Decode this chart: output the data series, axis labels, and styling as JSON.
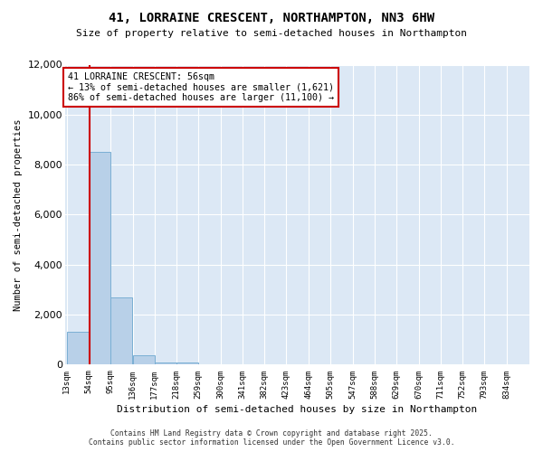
{
  "title1": "41, LORRAINE CRESCENT, NORTHAMPTON, NN3 6HW",
  "title2": "Size of property relative to semi-detached houses in Northampton",
  "xlabel": "Distribution of semi-detached houses by size in Northampton",
  "ylabel": "Number of semi-detached properties",
  "bins": [
    13,
    54,
    95,
    136,
    177,
    218,
    259,
    300,
    341,
    382,
    423,
    464,
    505,
    547,
    588,
    629,
    670,
    711,
    752,
    793,
    834
  ],
  "bar_heights": [
    1300,
    8500,
    2700,
    380,
    100,
    100,
    0,
    0,
    0,
    0,
    0,
    0,
    0,
    0,
    0,
    0,
    0,
    0,
    0,
    0
  ],
  "bar_color": "#b8d0e8",
  "bar_edge_color": "#7aafd4",
  "plot_bg_color": "#dce8f5",
  "figure_bg_color": "#ffffff",
  "grid_color": "#ffffff",
  "property_line_x": 56,
  "annotation_title": "41 LORRAINE CRESCENT: 56sqm",
  "annotation_line1": "← 13% of semi-detached houses are smaller (1,621)",
  "annotation_line2": "86% of semi-detached houses are larger (11,100) →",
  "annotation_box_color": "#cc0000",
  "annotation_bg_color": "#ffffff",
  "ylim": [
    0,
    12000
  ],
  "yticks": [
    0,
    2000,
    4000,
    6000,
    8000,
    10000,
    12000
  ],
  "footer_line1": "Contains HM Land Registry data © Crown copyright and database right 2025.",
  "footer_line2": "Contains public sector information licensed under the Open Government Licence v3.0.",
  "bin_labels": [
    "13sqm",
    "54sqm",
    "95sqm",
    "136sqm",
    "177sqm",
    "218sqm",
    "259sqm",
    "300sqm",
    "341sqm",
    "382sqm",
    "423sqm",
    "464sqm",
    "505sqm",
    "547sqm",
    "588sqm",
    "629sqm",
    "670sqm",
    "711sqm",
    "752sqm",
    "793sqm",
    "834sqm"
  ]
}
